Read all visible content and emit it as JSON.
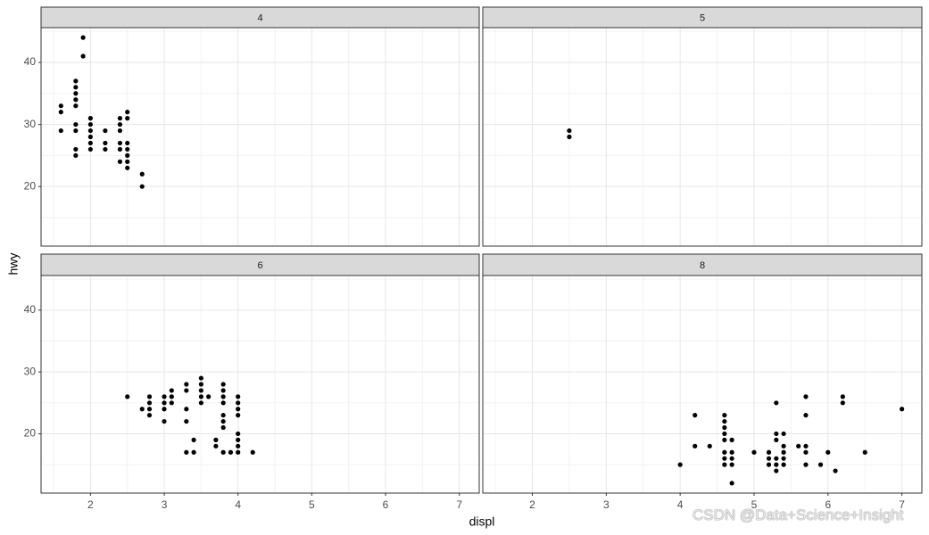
{
  "xlabel": "displ",
  "ylabel": "hwy",
  "watermark": "CSDN @Data+Science+Insight",
  "chart_data": [
    {
      "type": "scatter",
      "title": "4",
      "color": "#000000",
      "grid": true,
      "xlim": [
        1.33,
        7.27
      ],
      "ylim": [
        10.4,
        45.6
      ],
      "xticks": [
        2,
        3,
        4,
        5,
        6,
        7
      ],
      "yticks": [
        20,
        30,
        40
      ],
      "x": [
        1.6,
        1.6,
        1.6,
        1.8,
        1.8,
        1.8,
        1.8,
        1.8,
        1.8,
        1.8,
        1.8,
        1.8,
        1.9,
        1.9,
        2.0,
        2.0,
        2.0,
        2.0,
        2.0,
        2.0,
        2.2,
        2.2,
        2.2,
        2.4,
        2.4,
        2.4,
        2.4,
        2.4,
        2.4,
        2.5,
        2.5,
        2.5,
        2.5,
        2.5,
        2.5,
        2.5,
        2.7,
        2.7
      ],
      "y": [
        33,
        32,
        29,
        37,
        36,
        35,
        34,
        33,
        30,
        29,
        26,
        25,
        44,
        41,
        31,
        30,
        29,
        28,
        27,
        26,
        29,
        27,
        26,
        31,
        30,
        29,
        27,
        26,
        24,
        32,
        31,
        27,
        26,
        25,
        24,
        23,
        22,
        20
      ]
    },
    {
      "type": "scatter",
      "title": "5",
      "color": "#000000",
      "grid": true,
      "xlim": [
        1.33,
        7.27
      ],
      "ylim": [
        10.4,
        45.6
      ],
      "xticks": [
        2,
        3,
        4,
        5,
        6,
        7
      ],
      "yticks": [
        20,
        30,
        40
      ],
      "x": [
        2.5,
        2.5
      ],
      "y": [
        29,
        28
      ]
    },
    {
      "type": "scatter",
      "title": "6",
      "color": "#000000",
      "grid": true,
      "xlim": [
        1.33,
        7.27
      ],
      "ylim": [
        10.4,
        45.6
      ],
      "xticks": [
        2,
        3,
        4,
        5,
        6,
        7
      ],
      "yticks": [
        20,
        30,
        40
      ],
      "x": [
        2.5,
        2.7,
        2.8,
        2.8,
        2.8,
        2.8,
        3.0,
        3.0,
        3.0,
        3.0,
        3.1,
        3.1,
        3.1,
        3.3,
        3.3,
        3.3,
        3.3,
        3.3,
        3.4,
        3.4,
        3.5,
        3.5,
        3.5,
        3.5,
        3.5,
        3.6,
        3.7,
        3.7,
        3.8,
        3.8,
        3.8,
        3.8,
        3.8,
        3.8,
        3.8,
        3.8,
        3.9,
        4.0,
        4.0,
        4.0,
        4.0,
        4.0,
        4.0,
        4.0,
        4.0,
        4.2
      ],
      "y": [
        26,
        24,
        26,
        25,
        24,
        23,
        26,
        25,
        24,
        22,
        27,
        26,
        25,
        28,
        27,
        24,
        22,
        17,
        19,
        17,
        29,
        28,
        27,
        26,
        25,
        26,
        19,
        18,
        28,
        27,
        26,
        25,
        23,
        22,
        21,
        17,
        17,
        26,
        25,
        24,
        23,
        20,
        19,
        18,
        17,
        17
      ]
    },
    {
      "type": "scatter",
      "title": "8",
      "color": "#000000",
      "grid": true,
      "xlim": [
        1.33,
        7.27
      ],
      "ylim": [
        10.4,
        45.6
      ],
      "xticks": [
        2,
        3,
        4,
        5,
        6,
        7
      ],
      "yticks": [
        20,
        30,
        40
      ],
      "x": [
        4.0,
        4.2,
        4.2,
        4.4,
        4.6,
        4.6,
        4.6,
        4.6,
        4.6,
        4.6,
        4.6,
        4.6,
        4.7,
        4.7,
        4.7,
        4.7,
        4.7,
        5.0,
        5.2,
        5.2,
        5.2,
        5.3,
        5.3,
        5.3,
        5.3,
        5.3,
        5.3,
        5.4,
        5.4,
        5.4,
        5.4,
        5.4,
        5.6,
        5.7,
        5.7,
        5.7,
        5.7,
        5.7,
        5.9,
        6.0,
        6.1,
        6.2,
        6.2,
        6.5,
        7.0
      ],
      "y": [
        15,
        23,
        18,
        18,
        23,
        22,
        21,
        20,
        19,
        17,
        16,
        15,
        19,
        17,
        16,
        15,
        12,
        17,
        17,
        16,
        15,
        25,
        20,
        19,
        16,
        15,
        14,
        20,
        18,
        17,
        16,
        15,
        18,
        26,
        23,
        18,
        17,
        15,
        15,
        17,
        14,
        26,
        25,
        17,
        24
      ]
    }
  ]
}
